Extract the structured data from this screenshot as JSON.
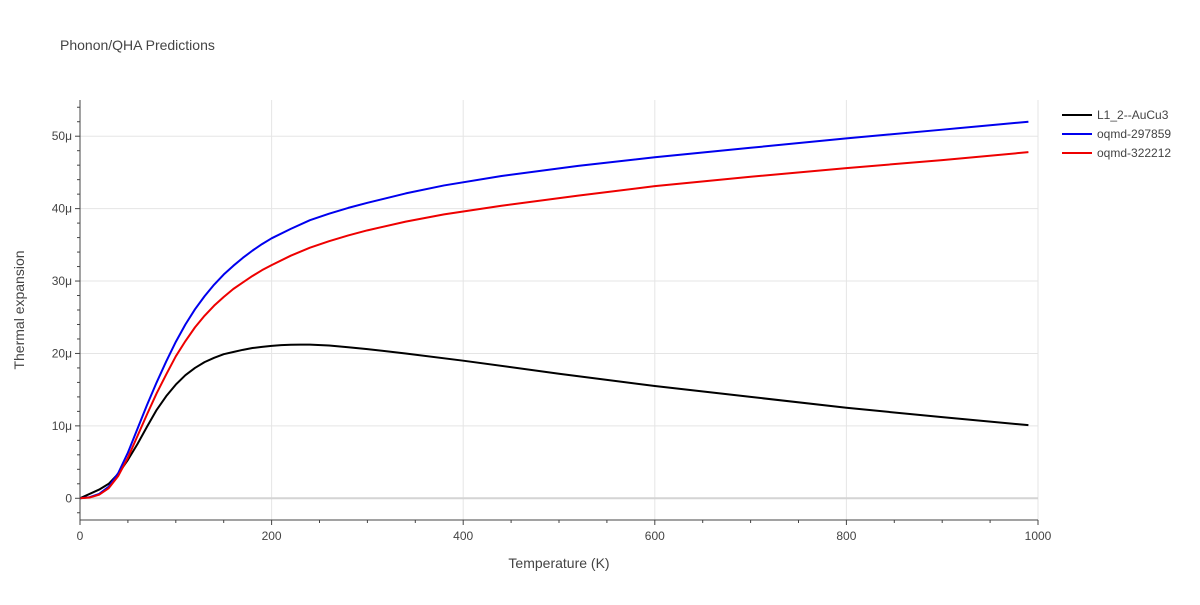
{
  "chart_data": {
    "type": "line",
    "title": "Phonon/QHA Predictions",
    "xlabel": "Temperature (K)",
    "ylabel": "Thermal expansion",
    "xlim": [
      0,
      1000
    ],
    "ylim": [
      -3e-06,
      5.5e-05
    ],
    "grid": true,
    "legend_position": "top-right",
    "x_ticks": [
      0,
      200,
      400,
      600,
      800,
      1000
    ],
    "x_tick_labels": [
      "0",
      "200",
      "400",
      "600",
      "800",
      "1000"
    ],
    "y_ticks": [
      0,
      1e-05,
      2e-05,
      3e-05,
      4e-05,
      5e-05
    ],
    "y_tick_labels": [
      "0",
      "10μ",
      "20μ",
      "30μ",
      "40μ",
      "50μ"
    ],
    "series": [
      {
        "name": "L1_2--AuCu3",
        "color": "#000000",
        "x": [
          0,
          10,
          20,
          30,
          40,
          50,
          60,
          70,
          80,
          90,
          100,
          110,
          120,
          130,
          140,
          150,
          160,
          170,
          180,
          190,
          200,
          210,
          220,
          230,
          240,
          260,
          280,
          300,
          340,
          400,
          500,
          600,
          700,
          800,
          900,
          990
        ],
        "y": [
          0,
          6e-07,
          1.2e-06,
          2e-06,
          3.4e-06,
          5.3e-06,
          7.5e-06,
          9.9e-06,
          1.22e-05,
          1.41e-05,
          1.57e-05,
          1.7e-05,
          1.8e-05,
          1.88e-05,
          1.94e-05,
          1.99e-05,
          2.02e-05,
          2.05e-05,
          2.075e-05,
          2.09e-05,
          2.105e-05,
          2.115e-05,
          2.12e-05,
          2.122e-05,
          2.122e-05,
          2.11e-05,
          2.085e-05,
          2.06e-05,
          2e-05,
          1.9e-05,
          1.72e-05,
          1.55e-05,
          1.4e-05,
          1.25e-05,
          1.12e-05,
          1.01e-05
        ]
      },
      {
        "name": "oqmd-297859",
        "color": "#0000ee",
        "x": [
          0,
          10,
          20,
          30,
          40,
          50,
          60,
          70,
          80,
          90,
          100,
          110,
          120,
          130,
          140,
          150,
          160,
          170,
          180,
          190,
          200,
          220,
          240,
          260,
          280,
          300,
          340,
          380,
          440,
          520,
          600,
          700,
          800,
          900,
          990
        ],
        "y": [
          0,
          1.5e-07,
          6e-07,
          1.6e-06,
          3.5e-06,
          6.3e-06,
          9.6e-06,
          1.29e-05,
          1.6e-05,
          1.89e-05,
          2.16e-05,
          2.4e-05,
          2.61e-05,
          2.79e-05,
          2.95e-05,
          3.09e-05,
          3.21e-05,
          3.32e-05,
          3.42e-05,
          3.51e-05,
          3.59e-05,
          3.72e-05,
          3.84e-05,
          3.93e-05,
          4.01e-05,
          4.08e-05,
          4.21e-05,
          4.32e-05,
          4.45e-05,
          4.59e-05,
          4.71e-05,
          4.84e-05,
          4.97e-05,
          5.09e-05,
          5.2e-05
        ]
      },
      {
        "name": "oqmd-322212",
        "color": "#ee0000",
        "x": [
          0,
          10,
          20,
          30,
          40,
          50,
          60,
          70,
          80,
          90,
          100,
          110,
          120,
          130,
          140,
          150,
          160,
          170,
          180,
          190,
          200,
          220,
          240,
          260,
          280,
          300,
          340,
          380,
          440,
          520,
          600,
          700,
          800,
          900,
          990
        ],
        "y": [
          0,
          1e-07,
          5e-07,
          1.4e-06,
          3.1e-06,
          5.6e-06,
          8.6e-06,
          1.16e-05,
          1.45e-05,
          1.71e-05,
          1.96e-05,
          2.17e-05,
          2.36e-05,
          2.52e-05,
          2.66e-05,
          2.78e-05,
          2.89e-05,
          2.98e-05,
          3.07e-05,
          3.15e-05,
          3.22e-05,
          3.35e-05,
          3.46e-05,
          3.55e-05,
          3.63e-05,
          3.7e-05,
          3.82e-05,
          3.92e-05,
          4.04e-05,
          4.18e-05,
          4.31e-05,
          4.44e-05,
          4.56e-05,
          4.67e-05,
          4.78e-05
        ]
      }
    ]
  }
}
